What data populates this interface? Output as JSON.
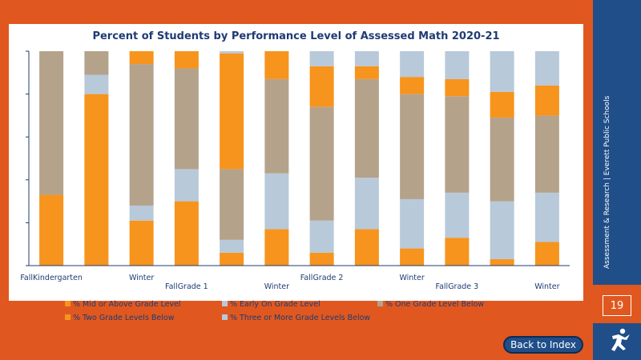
{
  "colors": {
    "background": "#e0581f",
    "sidebar": "#1f4e89",
    "orange": "#f7941d",
    "lightblue": "#b8c9d9",
    "tan": "#b5a28b",
    "text": "#1f3b73"
  },
  "sidebar": {
    "org_text": "Assessment & Research | Everett Public Schools",
    "page_number": "19",
    "logo_icon": "running-figure-logo-icon"
  },
  "back_button": {
    "label": "Back to Index"
  },
  "chart_data": {
    "type": "bar",
    "stacked": true,
    "percent_stacked": true,
    "title": "Percent of Students by Performance Level of Assessed Math 2020-21",
    "xlabel": "",
    "ylabel": "",
    "ylim": [
      0,
      100
    ],
    "x_tick_labels": [
      {
        "label": "FallKindergarten",
        "bar": 0,
        "row": 0
      },
      {
        "label": "Winter",
        "bar": 2,
        "row": 0
      },
      {
        "label": "FallGrade 1",
        "bar": 3,
        "row": 1
      },
      {
        "label": "Winter",
        "bar": 5,
        "row": 1
      },
      {
        "label": "FallGrade 2",
        "bar": 6,
        "row": 0
      },
      {
        "label": "Winter",
        "bar": 8,
        "row": 0
      },
      {
        "label": "FallGrade 3",
        "bar": 9,
        "row": 1
      },
      {
        "label": "Winter",
        "bar": 11,
        "row": 1
      }
    ],
    "legend_position": "bottom",
    "series": [
      {
        "name": "% Mid or Above Grade Level",
        "color": "#f7941d",
        "values": [
          33,
          80,
          21,
          30,
          6,
          17,
          6,
          17,
          8,
          13,
          3,
          11
        ]
      },
      {
        "name": "% Early On Grade Level",
        "color": "#b8c9d9",
        "values": [
          0,
          9,
          7,
          15,
          6,
          26,
          15,
          24,
          23,
          21,
          27,
          23
        ]
      },
      {
        "name": "% One Grade Level Below",
        "color": "#b5a28b",
        "values": [
          67,
          11,
          66,
          47,
          33,
          44,
          53,
          46,
          49,
          45,
          39,
          36
        ]
      },
      {
        "name": "% Two Grade Levels Below",
        "color": "#f7941d",
        "values": [
          0,
          0,
          6,
          8,
          54,
          13,
          19,
          6,
          8,
          8,
          12,
          14
        ]
      },
      {
        "name": "% Three or More Grade Levels Below",
        "color": "#b8c9d9",
        "values": [
          0,
          0,
          0,
          0,
          1,
          0,
          7,
          7,
          12,
          13,
          19,
          16
        ]
      }
    ]
  }
}
